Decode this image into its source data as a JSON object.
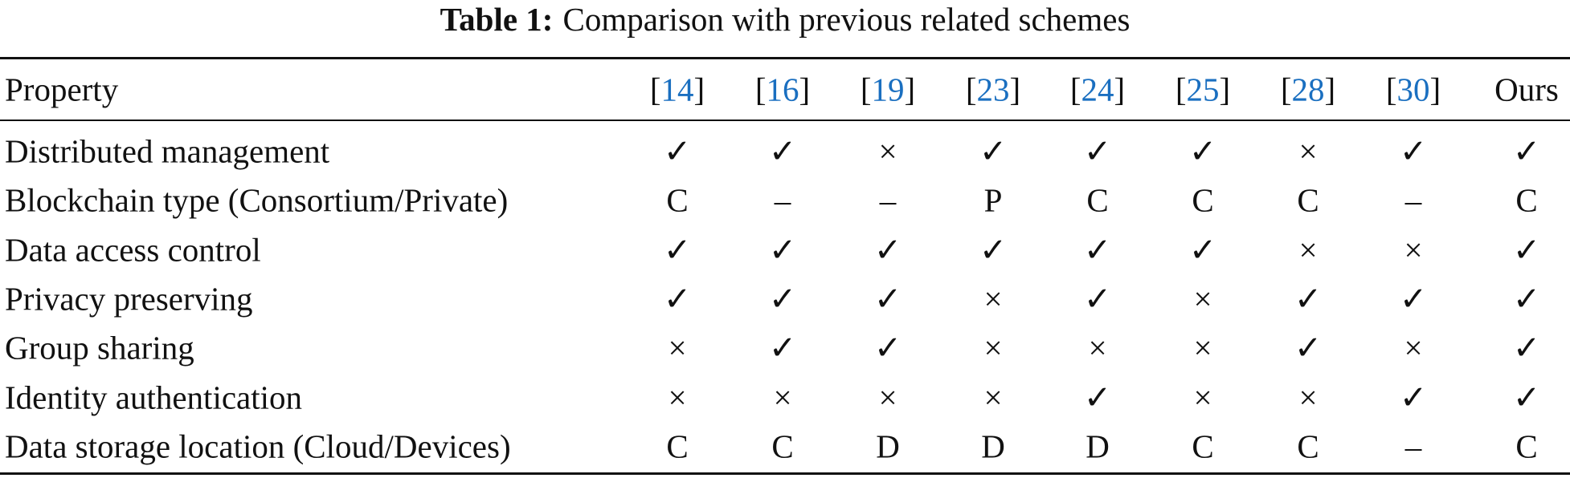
{
  "title": {
    "label": "Table 1:",
    "text": "Comparison with previous related schemes"
  },
  "table": {
    "header": {
      "property": "Property",
      "columns": [
        {
          "open": "[",
          "ref": "14",
          "close": "]"
        },
        {
          "open": "[",
          "ref": "16",
          "close": "]"
        },
        {
          "open": "[",
          "ref": "19",
          "close": "]"
        },
        {
          "open": "[",
          "ref": "23",
          "close": "]"
        },
        {
          "open": "[",
          "ref": "24",
          "close": "]"
        },
        {
          "open": "[",
          "ref": "25",
          "close": "]"
        },
        {
          "open": "[",
          "ref": "28",
          "close": "]"
        },
        {
          "open": "[",
          "ref": "30",
          "close": "]"
        },
        "Ours"
      ]
    },
    "rows": [
      [
        "Distributed management",
        "✓",
        "✓",
        "×",
        "✓",
        "✓",
        "✓",
        "×",
        "✓",
        "✓"
      ],
      [
        "Blockchain type (Consortium/Private)",
        "C",
        "–",
        "–",
        "P",
        "C",
        "C",
        "C",
        "–",
        "C"
      ],
      [
        "Data access control",
        "✓",
        "✓",
        "✓",
        "✓",
        "✓",
        "✓",
        "×",
        "×",
        "✓"
      ],
      [
        "Privacy preserving",
        "✓",
        "✓",
        "✓",
        "×",
        "✓",
        "×",
        "✓",
        "✓",
        "✓"
      ],
      [
        "Group sharing",
        "×",
        "✓",
        "✓",
        "×",
        "×",
        "×",
        "✓",
        "×",
        "✓"
      ],
      [
        "Identity authentication",
        "×",
        "×",
        "×",
        "×",
        "✓",
        "×",
        "×",
        "✓",
        "✓"
      ],
      [
        "Data storage location (Cloud/Devices)",
        "C",
        "C",
        "D",
        "D",
        "D",
        "C",
        "C",
        "–",
        "C"
      ]
    ]
  }
}
